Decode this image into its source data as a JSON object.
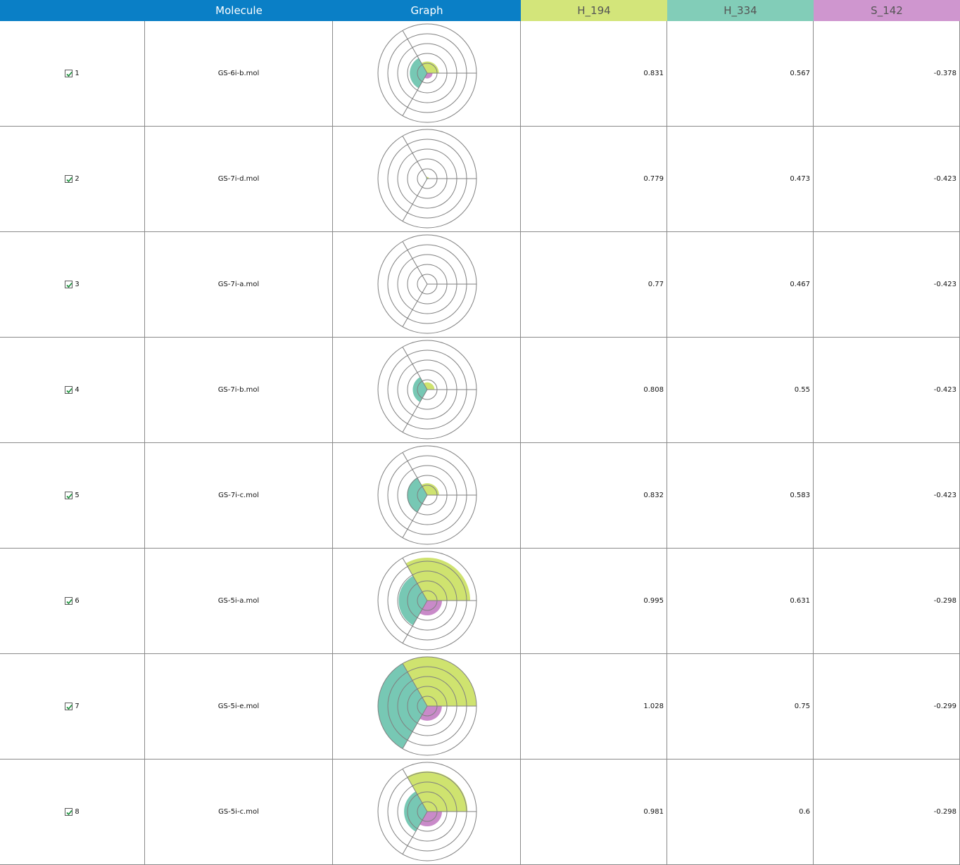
{
  "header": {
    "columns": [
      {
        "label": "",
        "bg": "#0a7fc6",
        "color": "#ffffff"
      },
      {
        "label": "Molecule",
        "bg": "#0a7fc6",
        "color": "#ffffff"
      },
      {
        "label": "Graph",
        "bg": "#0a7fc6",
        "color": "#ffffff"
      },
      {
        "label": "H_194",
        "bg": "#d3e57a",
        "color": "#555555"
      },
      {
        "label": "H_334",
        "bg": "#82cdb8",
        "color": "#555555"
      },
      {
        "label": "S_142",
        "bg": "#cf96cf",
        "color": "#555555"
      }
    ]
  },
  "colors": {
    "h194": "#cfe36f",
    "h334": "#77c8b4",
    "s142": "#c98ac9"
  },
  "rows": [
    {
      "index": "1",
      "checked": true,
      "molecule": "GS-6i-b.mol",
      "h194": "0.831",
      "h334": "0.567",
      "s142": "-0.378"
    },
    {
      "index": "2",
      "checked": true,
      "molecule": "GS-7i-d.mol",
      "h194": "0.779",
      "h334": "0.473",
      "s142": "-0.423"
    },
    {
      "index": "3",
      "checked": true,
      "molecule": "GS-7i-a.mol",
      "h194": "0.77",
      "h334": "0.467",
      "s142": "-0.423"
    },
    {
      "index": "4",
      "checked": true,
      "molecule": "GS-7i-b.mol",
      "h194": "0.808",
      "h334": "0.55",
      "s142": "-0.423"
    },
    {
      "index": "5",
      "checked": true,
      "molecule": "GS-7i-c.mol",
      "h194": "0.832",
      "h334": "0.583",
      "s142": "-0.423"
    },
    {
      "index": "6",
      "checked": true,
      "molecule": "GS-5i-a.mol",
      "h194": "0.995",
      "h334": "0.631",
      "s142": "-0.298"
    },
    {
      "index": "7",
      "checked": true,
      "molecule": "GS-5i-e.mol",
      "h194": "1.028",
      "h334": "0.75",
      "s142": "-0.299"
    },
    {
      "index": "8",
      "checked": true,
      "molecule": "GS-5i-c.mol",
      "h194": "0.981",
      "h334": "0.6",
      "s142": "-0.298"
    }
  ]
}
